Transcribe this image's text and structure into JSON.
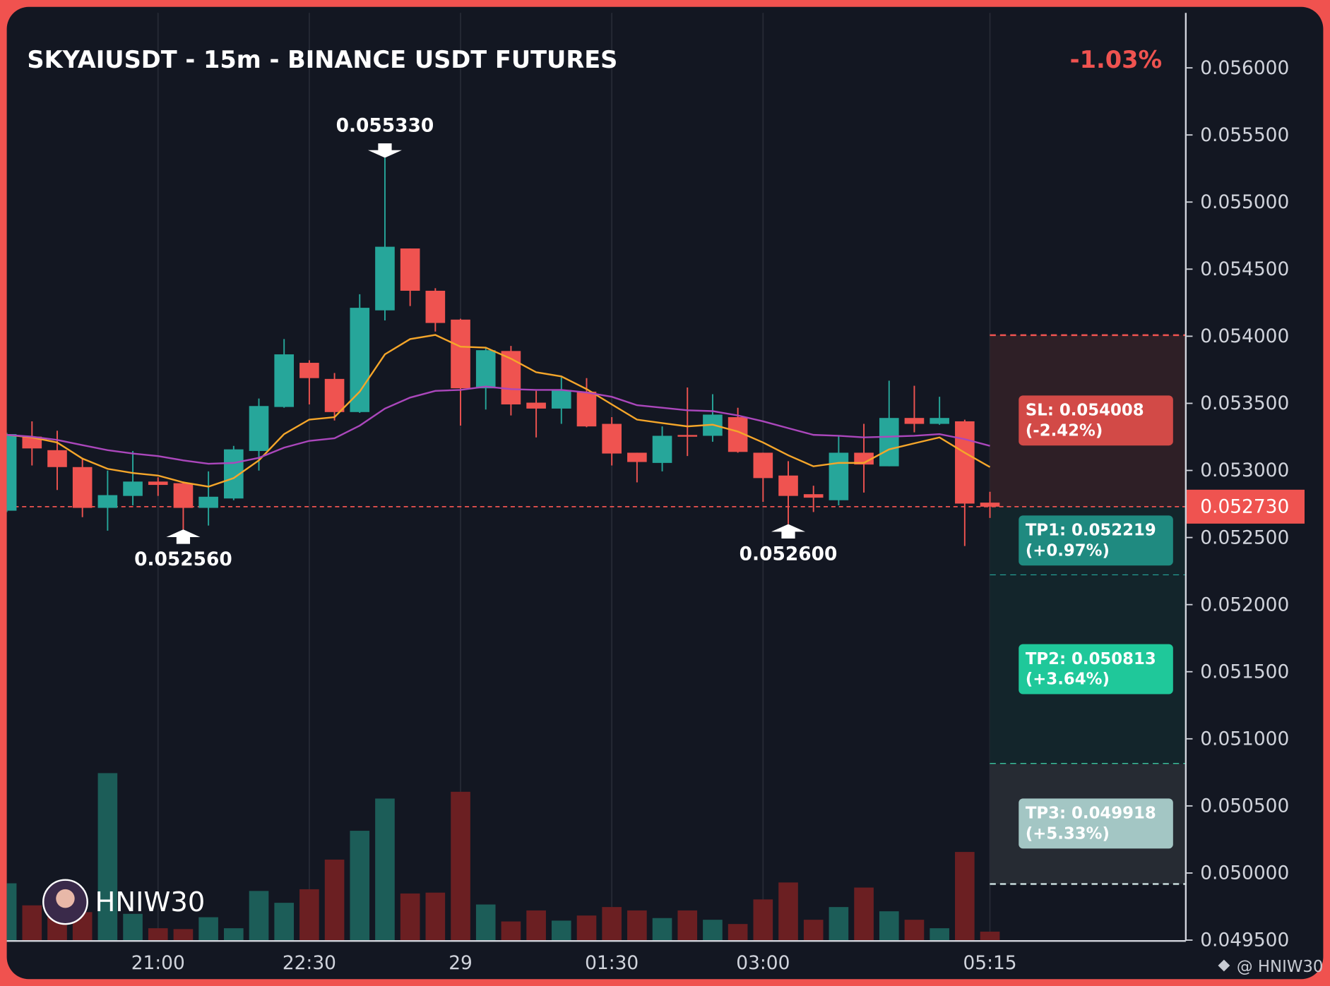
{
  "chart_data": {
    "type": "candlestick",
    "title": "SKYAIUSDT - 15m - BINANCE USDT FUTURES",
    "change": "-1.03%",
    "categories": [
      null,
      null,
      null,
      null,
      null,
      null,
      "21:00",
      null,
      null,
      null,
      null,
      null,
      "22:30",
      null,
      null,
      null,
      null,
      null,
      "29",
      null,
      null,
      null,
      null,
      null,
      "01:30",
      null,
      null,
      null,
      null,
      null,
      "03:00",
      null,
      null,
      null,
      null,
      null,
      null,
      null,
      null,
      "05:15"
    ],
    "open": [
      0.0527,
      0.053252,
      0.053151,
      0.053025,
      0.052721,
      0.05281,
      0.052917,
      0.052905,
      0.052721,
      0.052791,
      0.053145,
      0.053473,
      0.053802,
      0.053682,
      0.053435,
      0.054193,
      0.054654,
      0.054339,
      0.054124,
      0.053612,
      0.05389,
      0.053505,
      0.053461,
      0.053587,
      0.053347,
      0.053132,
      0.053056,
      0.053264,
      0.053258,
      0.053397,
      0.053132,
      0.052962,
      0.052823,
      0.052778,
      0.053132,
      0.053031,
      0.053391,
      0.053347,
      0.053366,
      0.05276
    ],
    "high": [
      0.05328,
      0.053366,
      0.053296,
      0.053094,
      0.052999,
      0.053145,
      0.052949,
      0.052917,
      0.052993,
      0.053183,
      0.053536,
      0.053979,
      0.053821,
      0.053726,
      0.054313,
      0.05533,
      0.054654,
      0.054358,
      0.05413,
      0.053915,
      0.053928,
      0.053593,
      0.053694,
      0.053688,
      0.053397,
      0.053132,
      0.053328,
      0.053618,
      0.053568,
      0.053467,
      0.053132,
      0.053069,
      0.052886,
      0.053258,
      0.053347,
      0.053669,
      0.053631,
      0.053549,
      0.053378,
      0.052841
    ],
    "low": [
      0.05269,
      0.053037,
      0.052854,
      0.052652,
      0.052551,
      0.05274,
      0.05281,
      0.05256,
      0.052589,
      0.052778,
      0.052999,
      0.053467,
      0.053492,
      0.053372,
      0.053429,
      0.054118,
      0.054225,
      0.054035,
      0.053334,
      0.053454,
      0.05341,
      0.053246,
      0.053347,
      0.053322,
      0.053037,
      0.052911,
      0.052993,
      0.053107,
      0.053214,
      0.053132,
      0.052766,
      0.0526,
      0.05269,
      0.05274,
      0.052835,
      0.053031,
      0.053284,
      0.05334,
      0.052437,
      0.052646
    ],
    "close": [
      0.053271,
      0.053164,
      0.053025,
      0.052721,
      0.052816,
      0.052917,
      0.052892,
      0.052721,
      0.052804,
      0.053157,
      0.05348,
      0.053865,
      0.053688,
      0.053435,
      0.054212,
      0.054667,
      0.054339,
      0.054099,
      0.053612,
      0.053896,
      0.053492,
      0.053461,
      0.0536,
      0.053328,
      0.053126,
      0.053063,
      0.053258,
      0.053252,
      0.053416,
      0.053138,
      0.052943,
      0.05281,
      0.052797,
      0.053132,
      0.053044,
      0.053391,
      0.053347,
      0.053391,
      0.052753,
      0.05273
    ],
    "volume": [
      68,
      42,
      35,
      34,
      198,
      32,
      15,
      14,
      28,
      15,
      59,
      45,
      61,
      96,
      130,
      168,
      56,
      57,
      176,
      43,
      23,
      36,
      24,
      30,
      40,
      36,
      27,
      36,
      25,
      20,
      49,
      69,
      25,
      40,
      63,
      35,
      25,
      15,
      105,
      11
    ],
    "up_color": "#26a69a",
    "down_color": "#ef5350",
    "volume_up_color": "#1c5d58",
    "volume_down_color": "#6b1f22",
    "ma_lines": [
      {
        "color": "#f5a62a",
        "values": [
          0.053265,
          0.053246,
          0.053208,
          0.053088,
          0.053012,
          0.052981,
          0.052962,
          0.052911,
          0.052879,
          0.052943,
          0.053075,
          0.053271,
          0.053379,
          0.053397,
          0.053587,
          0.053865,
          0.053979,
          0.05401,
          0.053922,
          0.053915,
          0.053833,
          0.053732,
          0.053701,
          0.053606,
          0.053492,
          0.053379,
          0.053353,
          0.053328,
          0.053341,
          0.05329,
          0.053208,
          0.053113,
          0.053031,
          0.053056,
          0.053056,
          0.053157,
          0.053202,
          0.053246,
          0.053132,
          0.053025
        ]
      },
      {
        "color": "#ab47bc",
        "values": [
          0.053265,
          0.053252,
          0.053227,
          0.053189,
          0.053151,
          0.053126,
          0.053107,
          0.053075,
          0.05305,
          0.053056,
          0.053094,
          0.05317,
          0.05322,
          0.05324,
          0.053334,
          0.053461,
          0.053543,
          0.053593,
          0.0536,
          0.053625,
          0.053606,
          0.0536,
          0.0536,
          0.053581,
          0.053549,
          0.053486,
          0.053467,
          0.053448,
          0.053442,
          0.05341,
          0.053366,
          0.053315,
          0.053265,
          0.053258,
          0.053246,
          0.053252,
          0.053258,
          0.053271,
          0.053233,
          0.053183
        ]
      }
    ],
    "ylim": [
      0.0495,
      0.05641
    ],
    "yticks": [
      {
        "value": 0.0495,
        "label": "0.049500"
      },
      {
        "value": 0.05,
        "label": "0.050000"
      },
      {
        "value": 0.0505,
        "label": "0.050500"
      },
      {
        "value": 0.051,
        "label": "0.051000"
      },
      {
        "value": 0.0515,
        "label": "0.051500"
      },
      {
        "value": 0.052,
        "label": "0.052000"
      },
      {
        "value": 0.0525,
        "label": "0.052500"
      },
      {
        "value": 0.053,
        "label": "0.053000"
      },
      {
        "value": 0.0535,
        "label": "0.053500"
      },
      {
        "value": 0.054,
        "label": "0.054000"
      },
      {
        "value": 0.0545,
        "label": "0.054500"
      },
      {
        "value": 0.055,
        "label": "0.055000"
      },
      {
        "value": 0.0555,
        "label": "0.055500"
      },
      {
        "value": 0.056,
        "label": "0.056000"
      }
    ],
    "grid": true,
    "current_price": {
      "value": 0.05273,
      "label": "0.052730"
    },
    "levels": [
      {
        "value": 0.054008,
        "label": "SL: 0.054008",
        "pct": "(-2.42%)",
        "color": "#ef5350",
        "box_color": "#d24a47",
        "zone_color": "#2e1f26"
      },
      {
        "value": 0.052219,
        "label": "TP1: 0.052219",
        "pct": "(+0.97%)",
        "color": "#26a69a",
        "box_color": "#1f8a80",
        "zone_color": "#13252b"
      },
      {
        "value": 0.050813,
        "label": "TP2: 0.050813",
        "pct": "(+3.64%)",
        "color": "#3fdcb0",
        "box_color": "#1fc89a",
        "zone_color": "#13252b"
      },
      {
        "value": 0.049918,
        "label": "TP3: 0.049918",
        "pct": "(+5.33%)",
        "color": "#c8dcdc",
        "box_color": "#a3c6c4",
        "zone_color": "#262b33"
      }
    ],
    "annotations": [
      {
        "index": 15,
        "kind": "high",
        "value": 0.05533,
        "label": "0.055330"
      },
      {
        "index": 7,
        "kind": "low",
        "value": 0.05256,
        "label": "0.052560"
      },
      {
        "index": 31,
        "kind": "low",
        "value": 0.0526,
        "label": "0.052600"
      }
    ],
    "watermark": "HNIW30",
    "credit": "@ HNIW30"
  }
}
